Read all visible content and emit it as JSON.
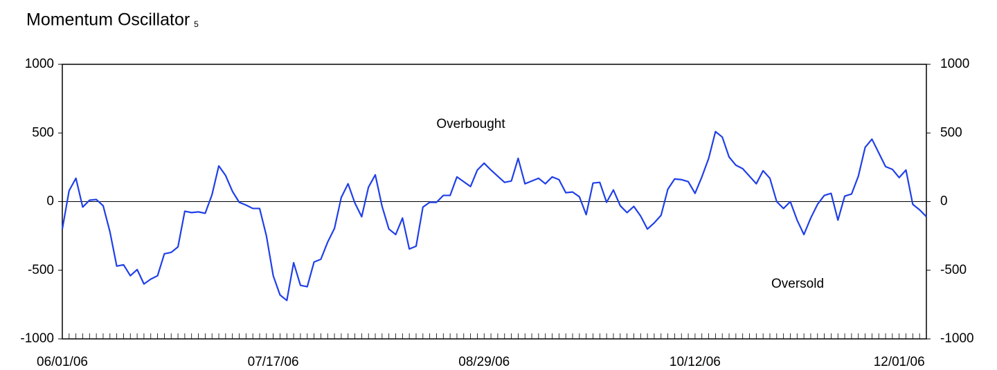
{
  "chart_data": {
    "type": "line",
    "title": "Momentum Oscillator",
    "title_subscript": "5",
    "annotations": [
      {
        "text": "Overbought"
      },
      {
        "text": "Oversold"
      }
    ],
    "categories": [
      "06/01/06",
      null,
      null,
      null,
      null,
      null,
      null,
      null,
      null,
      null,
      null,
      null,
      null,
      null,
      null,
      null,
      null,
      null,
      null,
      null,
      null,
      null,
      null,
      null,
      null,
      null,
      null,
      null,
      null,
      null,
      null,
      "07/17/06",
      null,
      null,
      null,
      null,
      null,
      null,
      null,
      null,
      null,
      null,
      null,
      null,
      null,
      null,
      null,
      null,
      null,
      null,
      null,
      null,
      null,
      null,
      null,
      null,
      null,
      null,
      null,
      null,
      null,
      null,
      "08/29/06",
      null,
      null,
      null,
      null,
      null,
      null,
      null,
      null,
      null,
      null,
      null,
      null,
      null,
      null,
      null,
      null,
      null,
      null,
      null,
      null,
      null,
      null,
      null,
      null,
      null,
      null,
      null,
      null,
      null,
      null,
      "10/12/06",
      null,
      null,
      null,
      null,
      null,
      null,
      null,
      null,
      null,
      null,
      null,
      null,
      null,
      null,
      null,
      null,
      null,
      null,
      null,
      null,
      null,
      null,
      null,
      null,
      null,
      null,
      null,
      null,
      null,
      "12/01/06",
      null,
      null,
      null,
      null
    ],
    "series": [
      {
        "name": "Momentum",
        "color": "#1f3fe8",
        "values": [
          -200,
          80,
          170,
          -40,
          10,
          15,
          -30,
          -220,
          -470,
          -460,
          -540,
          -495,
          -600,
          -565,
          -540,
          -380,
          -370,
          -330,
          -70,
          -80,
          -75,
          -85,
          50,
          260,
          190,
          75,
          -5,
          -25,
          -50,
          -50,
          -250,
          -540,
          -680,
          -720,
          -445,
          -610,
          -620,
          -440,
          -420,
          -295,
          -195,
          30,
          130,
          -10,
          -110,
          105,
          195,
          -35,
          -200,
          -240,
          -120,
          -345,
          -325,
          -40,
          -5,
          -5,
          45,
          45,
          180,
          145,
          110,
          230,
          280,
          230,
          185,
          140,
          150,
          315,
          130,
          150,
          170,
          130,
          180,
          160,
          65,
          70,
          35,
          -95,
          135,
          140,
          -5,
          85,
          -30,
          -80,
          -35,
          -105,
          -200,
          -155,
          -100,
          90,
          165,
          160,
          145,
          60,
          180,
          315,
          510,
          470,
          325,
          265,
          240,
          185,
          130,
          225,
          170,
          0,
          -50,
          0,
          -135,
          -240,
          -120,
          -20,
          45,
          60,
          -135,
          40,
          55,
          185,
          395,
          455,
          355,
          255,
          235,
          175,
          230,
          -20,
          -60,
          -110
        ]
      }
    ],
    "ylim": [
      -1000,
      1000
    ],
    "yticks": [
      -1000,
      -500,
      0,
      500,
      1000
    ],
    "y2lim": [
      -1000,
      1000
    ],
    "y2ticks": [
      -1000,
      -500,
      0,
      500,
      1000
    ],
    "zero_line": true
  }
}
